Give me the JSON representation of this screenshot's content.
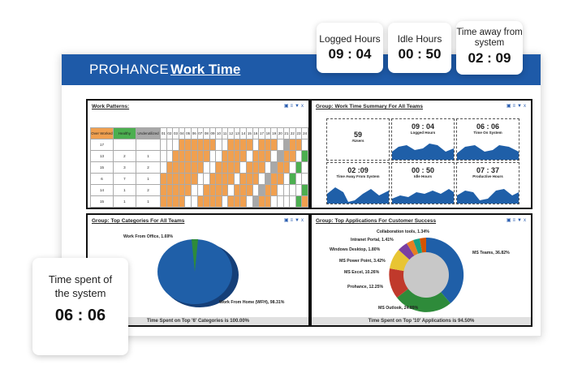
{
  "brand": {
    "name": "PROHANCE",
    "section": "Work Time"
  },
  "stats": {
    "logged": {
      "label": "Logged Hours",
      "value": "09 : 04"
    },
    "idle": {
      "label": "Idle Hours",
      "value": "00 : 50"
    },
    "away": {
      "label": "Time away from system",
      "value": "02 : 09"
    },
    "spent": {
      "label": "Time spent of the system",
      "value": "06 : 06"
    }
  },
  "panels": {
    "work_patterns": {
      "title": "Work Patterns:",
      "headers": [
        "Over Worked",
        "Healthy",
        "Underutilized",
        "01",
        "02",
        "03",
        "04",
        "05",
        "06",
        "07",
        "08",
        "09",
        "10",
        "11",
        "12",
        "13",
        "14",
        "15",
        "16",
        "17",
        "18",
        "19",
        "20",
        "21",
        "22",
        "23",
        "24"
      ],
      "rows": [
        [
          "17",
          "",
          ""
        ],
        [
          "13",
          "2",
          "1"
        ],
        [
          "15",
          "3",
          "2"
        ],
        [
          "6",
          "7",
          "1"
        ],
        [
          "14",
          "1",
          "2"
        ],
        [
          "15",
          "1",
          "1"
        ]
      ]
    },
    "summary": {
      "title": "Group: Work Time Summary For All Teams",
      "tiles": [
        {
          "value": "59",
          "label": "#Users"
        },
        {
          "value": "09 : 04",
          "label": "Logged Hours"
        },
        {
          "value": "06 : 06",
          "label": "Time On System"
        },
        {
          "value": "02 :09",
          "label": "Time Away From System"
        },
        {
          "value": "00 : 50",
          "label": "Idle Hours"
        },
        {
          "value": "07 : 37",
          "label": "Productive Hours"
        }
      ]
    },
    "categories": {
      "title": "Group: Top Categories For All Teams",
      "footer": "Time Spent on Top '6' Categories is 100.00%",
      "labels": [
        "Work From Office, 1.69%",
        "Work From Home (WFH), 98.31%"
      ]
    },
    "applications": {
      "title": "Group: Top Applications For Customer Success",
      "footer": "Time Spent on Top '10' Applications is 94.50%",
      "labels": [
        "Collaboration tools, 1.34%",
        "Intranet Portal, 1.41%",
        "Windows Desktop, 1.80%",
        "MS Power Point, 3.42%",
        "MS Excel, 10.26%",
        "Prohance, 12.25%",
        "MS Outlook, 24.89%",
        "MS Teams, 36.82%"
      ]
    }
  },
  "colors": {
    "brand_blue": "#1e5aa8",
    "over": "#f0a050",
    "healthy": "#4caf50",
    "under": "#a8a8a8",
    "pie_blue": "#1f5fa8",
    "pie_green": "#2e8b3a"
  }
}
